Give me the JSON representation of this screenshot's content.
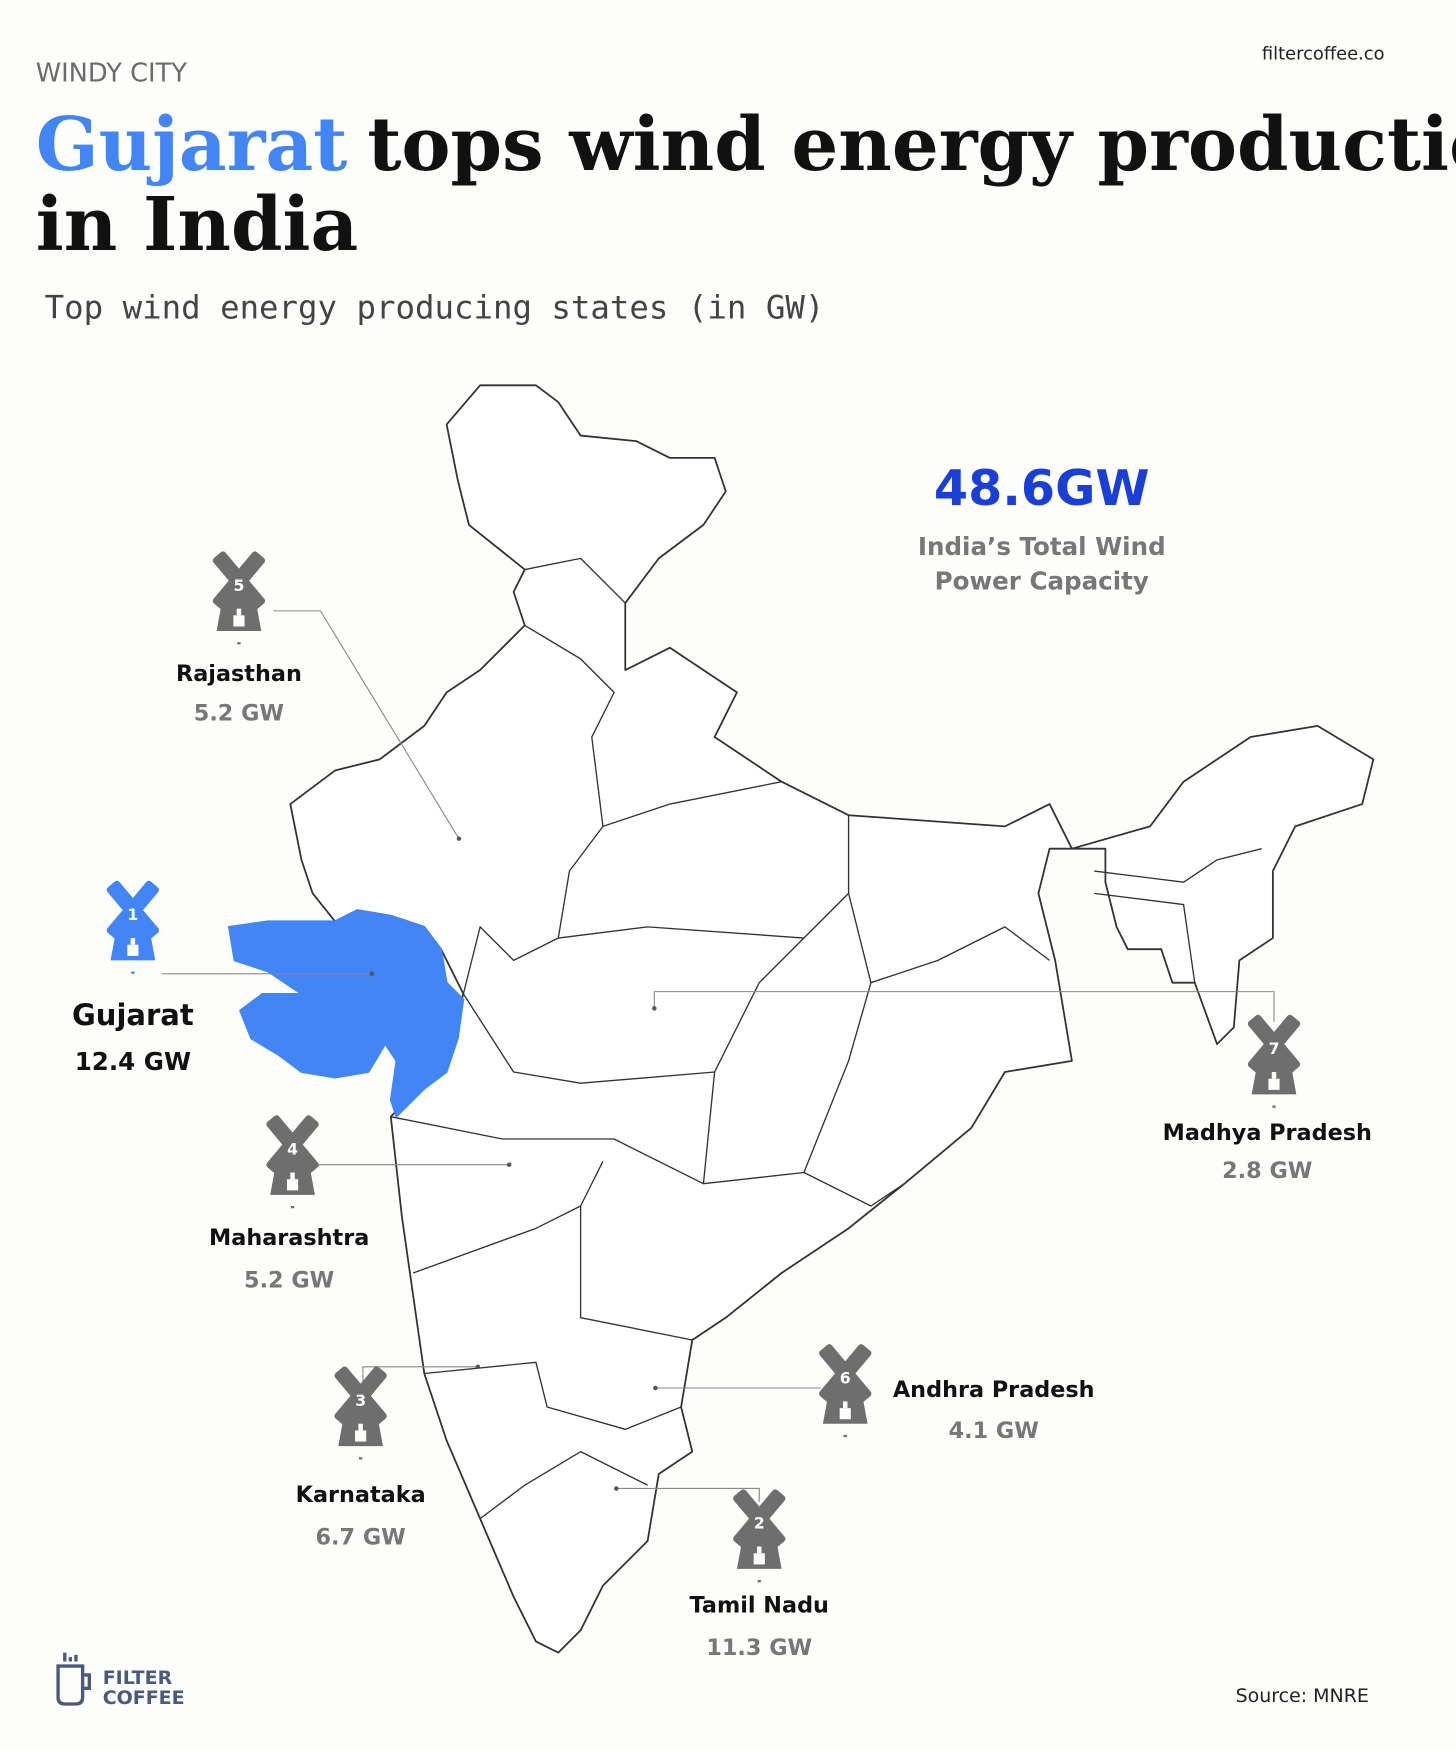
{
  "brand": {
    "site": "filtercoffee.co",
    "logo_line1": "FILTER",
    "logo_line2": "COFFEE"
  },
  "header": {
    "kicker": "WINDY CITY",
    "title_highlight": "Gujarat",
    "title_rest_line1": "tops wind energy production",
    "title_line2": "in India",
    "subtitle": "Top wind energy producing states (in GW)"
  },
  "total": {
    "value": "48.6GW",
    "label_line1": "India’s Total Wind",
    "label_line2": "Power Capacity"
  },
  "states": [
    {
      "rank": 1,
      "name": "Gujarat",
      "value": "12.4 GW"
    },
    {
      "rank": 2,
      "name": "Tamil Nadu",
      "value": "11.3 GW"
    },
    {
      "rank": 3,
      "name": "Karnataka",
      "value": "6.7 GW"
    },
    {
      "rank": 4,
      "name": "Maharashtra",
      "value": "5.2 GW"
    },
    {
      "rank": 5,
      "name": "Rajasthan",
      "value": "5.2 GW"
    },
    {
      "rank": 6,
      "name": "Andhra Pradesh",
      "value": "4.1 GW"
    },
    {
      "rank": 7,
      "name": "Madhya Pradesh",
      "value": "2.8 GW"
    }
  ],
  "source": "Source: MNRE"
}
